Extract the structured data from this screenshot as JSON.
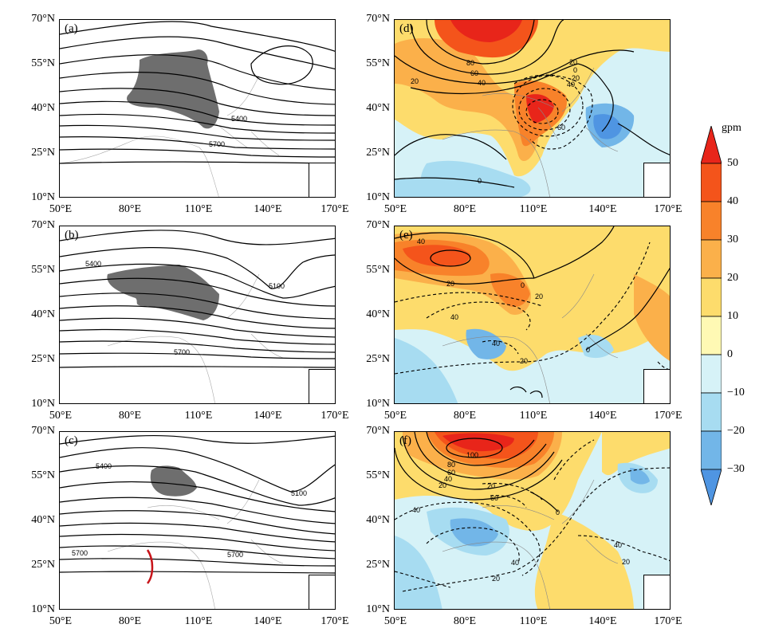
{
  "panels": [
    {
      "label": "(a)",
      "contours": [
        "5400",
        "5700"
      ]
    },
    {
      "label": "(b)",
      "contours": [
        "5400",
        "5100",
        "5700"
      ]
    },
    {
      "label": "(c)",
      "contours": [
        "5400",
        "5100",
        "5700",
        "5700"
      ]
    },
    {
      "label": "(d)",
      "contours": [
        "80",
        "60",
        "40",
        "20",
        "20",
        "0",
        "20",
        "40",
        "60",
        "0"
      ]
    },
    {
      "label": "(e)",
      "contours": [
        "40",
        "20",
        "0",
        "20",
        "40",
        "40",
        "20",
        "0"
      ]
    },
    {
      "label": "(f)",
      "contours": [
        "100",
        "80",
        "60",
        "40",
        "20",
        "20",
        "60",
        "40",
        "0",
        "40",
        "20",
        "40",
        "20"
      ]
    }
  ],
  "lat_labels": [
    "70°N",
    "55°N",
    "40°N",
    "25°N",
    "10°N"
  ],
  "lon_labels": [
    "50°E",
    "80°E",
    "110°E",
    "140°E",
    "170°E"
  ],
  "colorbar": {
    "unit": "gpm",
    "labels": [
      "50",
      "40",
      "30",
      "20",
      "10",
      "0",
      "−10",
      "−20",
      "−30"
    ],
    "colors": [
      "#e8251a",
      "#f4541b",
      "#f8822a",
      "#fbb04a",
      "#fddc6c",
      "#fff9b4",
      "#d6f2f7",
      "#a7dcf1",
      "#72b6e8",
      "#4f95e2"
    ]
  },
  "colors": {
    "shade_gray": "#6e6e6e",
    "red_arc": "#c8141a"
  }
}
